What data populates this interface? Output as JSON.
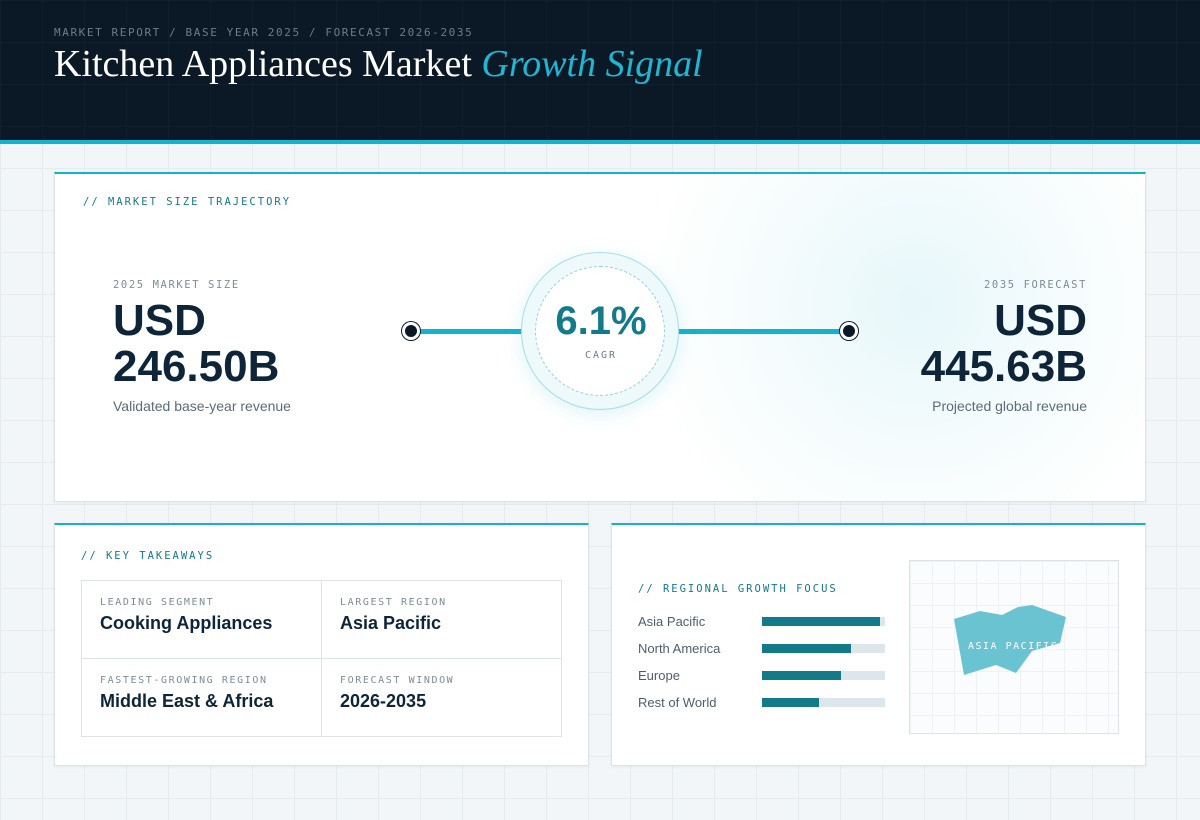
{
  "header": {
    "breadcrumb": "MARKET REPORT / BASE YEAR 2025 / FORECAST 2026-2035",
    "title_main": "Kitchen Appliances Market",
    "title_accent": "Growth Signal"
  },
  "trajectory": {
    "section_label": "// MARKET SIZE TRAJECTORY",
    "start": {
      "label": "2025 MARKET SIZE",
      "currency": "USD",
      "value": "246.50B",
      "caption": "Validated base-year revenue"
    },
    "cagr": {
      "value": "6.1%",
      "label": "CAGR"
    },
    "end": {
      "label": "2035 FORECAST",
      "currency": "USD",
      "value": "445.63B",
      "caption": "Projected global revenue"
    }
  },
  "takeaways": {
    "section_label": "// KEY TAKEAWAYS",
    "items": [
      {
        "label": "LEADING SEGMENT",
        "value": "Cooking Appliances"
      },
      {
        "label": "LARGEST REGION",
        "value": "Asia Pacific"
      },
      {
        "label": "FASTEST-GROWING REGION",
        "value": "Middle East & Africa"
      },
      {
        "label": "FORECAST WINDOW",
        "value": "2026-2035"
      }
    ]
  },
  "regional": {
    "section_label": "// REGIONAL GROWTH FOCUS",
    "bars": [
      {
        "name": "Asia Pacific",
        "fraction": 0.96
      },
      {
        "name": "North America",
        "fraction": 0.72
      },
      {
        "name": "Europe",
        "fraction": 0.64
      },
      {
        "name": "Rest of World",
        "fraction": 0.46
      }
    ],
    "map_label": "ASIA PACIFIC"
  },
  "colors": {
    "accent": "#13b3cc",
    "accent_dark": "#137a8a",
    "navy": "#0b1926",
    "text_dark": "#0e2438"
  }
}
